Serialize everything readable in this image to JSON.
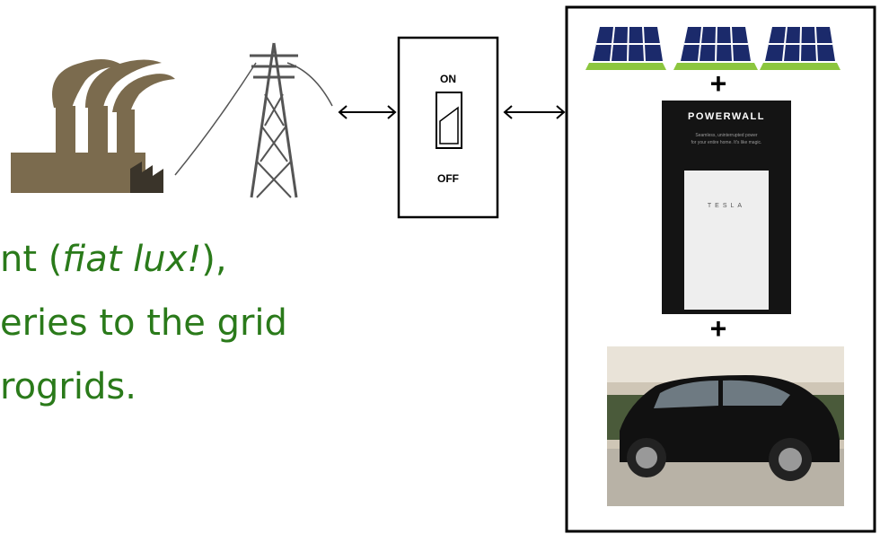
{
  "text": {
    "line1": {
      "before": "nt (",
      "italic": "fiat lux!",
      "after": "),"
    },
    "line2": "eries to the grid",
    "line3": "rogrids."
  },
  "switch": {
    "on": "ON",
    "off": "OFF"
  },
  "storage": {
    "plus_top": "+",
    "powerwall_brand": "POWERWALL",
    "powerwall_tagline_1": "Seamless, uninterrupted power",
    "powerwall_tagline_2": "for your entire home. It's like magic.",
    "powerwall_logo": "TESLA",
    "plus_bottom": "+"
  }
}
